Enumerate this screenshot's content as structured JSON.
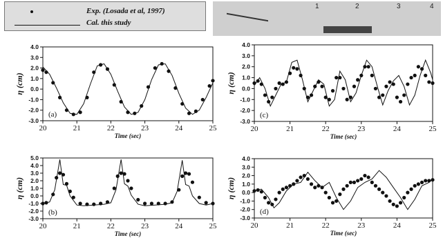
{
  "legend": {
    "experiment_label": "Exp. (Losada et al, 1997)",
    "calculation_label": "Cal. this study"
  },
  "flume_ticks": [
    "1",
    "2",
    "3",
    "4"
  ],
  "chart_data": [
    {
      "type": "line",
      "panel": "(a)",
      "xlabel": "Time (sec)",
      "ylabel": "η (cm)",
      "xlim": [
        20,
        25
      ],
      "ylim": [
        -3.0,
        4.0
      ],
      "xticks": [
        20,
        21,
        22,
        23,
        24,
        25
      ],
      "yticks": [
        -3.0,
        -2.0,
        -1.0,
        0.0,
        1.0,
        2.0,
        3.0,
        4.0
      ],
      "calc": {
        "x": [
          20.0,
          20.2,
          20.4,
          20.6,
          20.8,
          21.0,
          21.2,
          21.4,
          21.6,
          21.8,
          22.0,
          22.2,
          22.4,
          22.6,
          22.8,
          23.0,
          23.2,
          23.4,
          23.6,
          23.8,
          24.0,
          24.2,
          24.4,
          24.6,
          24.8,
          25.0
        ],
        "y": [
          2.1,
          1.4,
          0.1,
          -1.3,
          -2.3,
          -2.4,
          -1.4,
          0.5,
          2.2,
          2.4,
          1.4,
          -0.2,
          -1.7,
          -2.4,
          -2.2,
          -1.0,
          0.9,
          2.3,
          2.4,
          1.3,
          -0.4,
          -1.8,
          -2.4,
          -2.0,
          -0.8,
          0.6
        ]
      },
      "exp": {
        "x": [
          20.0,
          20.1,
          20.3,
          20.5,
          20.7,
          20.9,
          21.1,
          21.3,
          21.5,
          21.7,
          21.9,
          22.1,
          22.3,
          22.5,
          22.7,
          22.9,
          23.1,
          23.3,
          23.5,
          23.7,
          23.9,
          24.1,
          24.3,
          24.5,
          24.7,
          24.9,
          25.0
        ],
        "y": [
          1.8,
          1.6,
          0.6,
          -0.8,
          -2.0,
          -2.4,
          -2.2,
          -0.8,
          1.6,
          2.3,
          1.9,
          0.4,
          -1.2,
          -2.2,
          -2.3,
          -1.6,
          0.2,
          2.0,
          2.4,
          1.7,
          0.1,
          -1.4,
          -2.3,
          -2.1,
          -1.0,
          0.3,
          0.8
        ]
      }
    },
    {
      "type": "line",
      "panel": "(b)",
      "xlabel": "Time (sec)",
      "ylabel": "η (cm)",
      "xlim": [
        20,
        25
      ],
      "ylim": [
        -3.0,
        5.0
      ],
      "xticks": [
        20,
        21,
        22,
        23,
        24,
        25
      ],
      "yticks": [
        -3.0,
        -2.0,
        -1.0,
        0.0,
        1.0,
        2.0,
        3.0,
        4.0,
        5.0
      ],
      "calc": {
        "x": [
          20.0,
          20.2,
          20.35,
          20.5,
          20.6,
          20.7,
          20.8,
          21.0,
          21.2,
          21.5,
          21.8,
          22.0,
          22.15,
          22.3,
          22.4,
          22.5,
          22.6,
          22.8,
          23.0,
          23.3,
          23.6,
          23.8,
          23.95,
          24.1,
          24.2,
          24.3,
          24.4,
          24.6,
          24.8,
          25.0
        ],
        "y": [
          -1.0,
          -0.8,
          0.8,
          4.8,
          1.5,
          1.4,
          0.0,
          -1.2,
          -1.3,
          -1.2,
          -1.1,
          -0.9,
          0.8,
          4.8,
          1.6,
          1.3,
          0.1,
          -1.1,
          -1.3,
          -1.2,
          -1.1,
          -0.9,
          0.6,
          4.7,
          1.5,
          1.3,
          0.0,
          -1.0,
          -1.2,
          -1.0
        ]
      },
      "exp": {
        "x": [
          20.0,
          20.1,
          20.3,
          20.4,
          20.5,
          20.6,
          20.7,
          20.8,
          20.9,
          21.1,
          21.3,
          21.5,
          21.7,
          21.9,
          22.1,
          22.2,
          22.3,
          22.4,
          22.5,
          22.6,
          22.8,
          23.0,
          23.2,
          23.4,
          23.6,
          23.8,
          24.0,
          24.1,
          24.2,
          24.3,
          24.4,
          24.6,
          24.8,
          25.0
        ],
        "y": [
          -1.0,
          -0.9,
          0.2,
          2.4,
          3.0,
          2.8,
          1.6,
          0.6,
          -0.2,
          -1.0,
          -1.1,
          -1.1,
          -1.0,
          -0.8,
          1.0,
          2.6,
          3.0,
          2.9,
          2.0,
          1.0,
          -0.5,
          -1.0,
          -1.0,
          -1.0,
          -1.0,
          -0.8,
          0.8,
          2.6,
          3.0,
          2.9,
          1.8,
          -0.2,
          -0.9,
          -1.0
        ]
      }
    },
    {
      "type": "line",
      "panel": "(c)",
      "xlabel": "Time (sec)",
      "ylabel": "η (cm)",
      "xlim": [
        20,
        25
      ],
      "ylim": [
        -3.0,
        4.0
      ],
      "xticks": [
        20,
        21,
        22,
        23,
        24,
        25
      ],
      "yticks": [
        -3.0,
        -2.0,
        -1.0,
        0.0,
        1.0,
        2.0,
        3.0,
        4.0
      ],
      "calc": {
        "x": [
          20.0,
          20.15,
          20.3,
          20.45,
          20.6,
          20.75,
          20.9,
          21.05,
          21.2,
          21.35,
          21.5,
          21.65,
          21.8,
          21.95,
          22.1,
          22.25,
          22.4,
          22.55,
          22.7,
          22.85,
          23.0,
          23.15,
          23.3,
          23.45,
          23.6,
          23.75,
          23.9,
          24.05,
          24.2,
          24.35,
          24.5,
          24.65,
          24.8,
          24.95,
          25.0
        ],
        "y": [
          0.3,
          1.0,
          0.0,
          -1.6,
          -0.6,
          0.4,
          0.6,
          2.4,
          2.6,
          0.8,
          -1.2,
          -0.2,
          0.8,
          0.4,
          -1.6,
          -1.0,
          1.6,
          0.8,
          -1.2,
          -0.4,
          1.2,
          2.6,
          2.0,
          0.2,
          -1.5,
          -0.2,
          0.7,
          1.2,
          0.2,
          -1.5,
          -0.6,
          1.2,
          2.6,
          1.4,
          0.8
        ]
      },
      "exp": {
        "x": [
          20.0,
          20.1,
          20.2,
          20.3,
          20.4,
          20.5,
          20.6,
          20.7,
          20.8,
          20.9,
          21.0,
          21.1,
          21.2,
          21.3,
          21.4,
          21.5,
          21.6,
          21.7,
          21.8,
          21.9,
          22.0,
          22.1,
          22.2,
          22.3,
          22.4,
          22.5,
          22.6,
          22.7,
          22.8,
          22.9,
          23.0,
          23.1,
          23.2,
          23.3,
          23.4,
          23.5,
          23.6,
          23.7,
          23.8,
          23.9,
          24.0,
          24.1,
          24.2,
          24.3,
          24.4,
          24.5,
          24.6,
          24.7,
          24.8,
          24.9,
          25.0
        ],
        "y": [
          0.5,
          0.7,
          0.4,
          -0.6,
          -1.2,
          -0.8,
          0.0,
          0.5,
          0.4,
          0.6,
          1.4,
          1.9,
          1.8,
          1.2,
          0.0,
          -0.8,
          -0.6,
          0.2,
          0.6,
          0.2,
          -0.8,
          -1.0,
          -0.2,
          1.0,
          1.0,
          0.0,
          -1.0,
          -0.8,
          0.2,
          0.8,
          1.2,
          2.0,
          2.0,
          1.2,
          0.0,
          -0.8,
          -0.6,
          0.2,
          0.6,
          0.4,
          -0.8,
          -1.2,
          -0.6,
          0.4,
          1.0,
          1.2,
          2.0,
          1.8,
          1.2,
          0.6,
          0.5
        ]
      }
    },
    {
      "type": "line",
      "panel": "(d)",
      "xlabel": "Time (sec)",
      "ylabel": "η (cm)",
      "xlim": [
        20,
        25
      ],
      "ylim": [
        -3.0,
        4.0
      ],
      "xticks": [
        20,
        21,
        22,
        23,
        24,
        25
      ],
      "yticks": [
        -3.0,
        -2.0,
        -1.0,
        0.0,
        1.0,
        2.0,
        3.0,
        4.0
      ],
      "calc": {
        "x": [
          20.0,
          20.2,
          20.4,
          20.55,
          20.7,
          20.9,
          21.1,
          21.3,
          21.5,
          21.7,
          21.9,
          22.1,
          22.3,
          22.5,
          22.7,
          22.9,
          23.1,
          23.3,
          23.5,
          23.7,
          23.9,
          24.1,
          24.3,
          24.5,
          24.7,
          24.9,
          25.0
        ],
        "y": [
          0.2,
          0.4,
          -0.6,
          -1.8,
          -1.2,
          0.2,
          1.0,
          1.2,
          2.4,
          1.4,
          0.6,
          1.2,
          -0.6,
          -2.0,
          -1.0,
          0.6,
          1.2,
          1.6,
          2.6,
          1.8,
          0.6,
          -0.6,
          -2.0,
          -0.8,
          0.8,
          1.2,
          1.6
        ]
      },
      "exp": {
        "x": [
          20.0,
          20.1,
          20.2,
          20.3,
          20.4,
          20.5,
          20.6,
          20.7,
          20.8,
          20.9,
          21.0,
          21.1,
          21.2,
          21.3,
          21.4,
          21.5,
          21.6,
          21.7,
          21.8,
          21.9,
          22.0,
          22.1,
          22.2,
          22.3,
          22.4,
          22.5,
          22.6,
          22.7,
          22.8,
          22.9,
          23.0,
          23.1,
          23.2,
          23.3,
          23.4,
          23.5,
          23.6,
          23.7,
          23.8,
          23.9,
          24.0,
          24.1,
          24.2,
          24.3,
          24.4,
          24.5,
          24.6,
          24.7,
          24.8,
          24.9,
          25.0
        ],
        "y": [
          0.2,
          0.3,
          0.1,
          -0.6,
          -1.2,
          -1.4,
          -0.8,
          0.0,
          0.4,
          0.6,
          0.8,
          1.0,
          1.4,
          1.8,
          2.0,
          1.6,
          1.0,
          0.6,
          0.8,
          0.6,
          0.0,
          -0.6,
          -1.2,
          -1.0,
          -0.2,
          0.4,
          0.8,
          1.2,
          1.2,
          1.4,
          1.6,
          2.0,
          1.8,
          1.2,
          0.8,
          0.4,
          0.0,
          -0.4,
          -1.0,
          -1.4,
          -1.6,
          -1.2,
          -0.6,
          0.0,
          0.4,
          0.8,
          1.0,
          1.2,
          1.4,
          1.4,
          1.5
        ]
      }
    }
  ]
}
